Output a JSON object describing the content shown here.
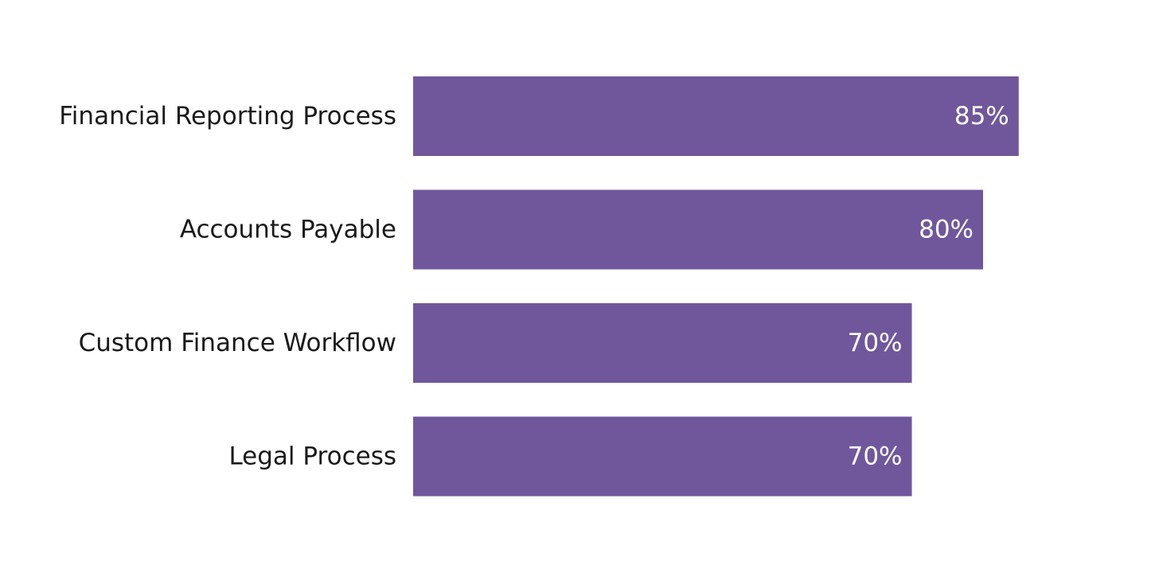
{
  "chart_data": {
    "type": "bar",
    "orientation": "horizontal",
    "categories": [
      "Financial Reporting Process",
      "Accounts Payable",
      "Custom Finance Workflow",
      "Legal Process"
    ],
    "values": [
      85,
      80,
      70,
      70
    ],
    "value_labels": [
      "85%",
      "80%",
      "70%",
      "70%"
    ],
    "title": "",
    "xlabel": "",
    "ylabel": "",
    "grid": false,
    "legend": "none",
    "bar_color": "#70579C",
    "label_color": "#1a1a1a",
    "value_label_color": "#ffffff"
  }
}
